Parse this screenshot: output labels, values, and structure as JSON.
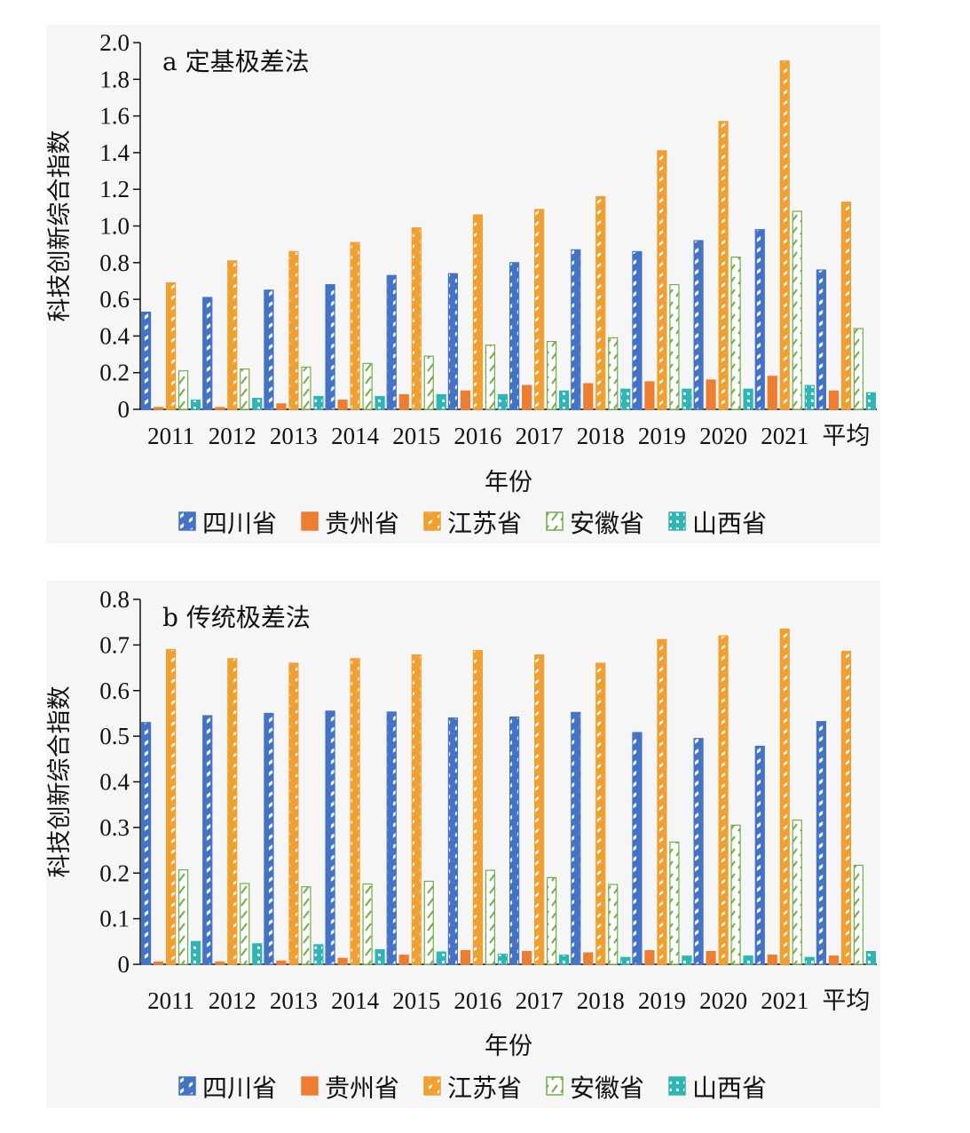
{
  "chart_data": [
    {
      "type": "bar",
      "title": "a 定基极差法",
      "xlabel": "年份",
      "ylabel": "科技创新综合指数",
      "ylim": [
        0,
        2.0
      ],
      "yticks": [
        "0",
        "0.2",
        "0.4",
        "0.6",
        "0.8",
        "1.0",
        "1.2",
        "1.4",
        "1.6",
        "1.8",
        "2.0"
      ],
      "categories": [
        "2011",
        "2012",
        "2013",
        "2014",
        "2015",
        "2016",
        "2017",
        "2018",
        "2019",
        "2020",
        "2021",
        "平均"
      ],
      "series": [
        {
          "name": "四川省",
          "color": "#4472c4",
          "values": [
            0.53,
            0.61,
            0.65,
            0.68,
            0.73,
            0.74,
            0.8,
            0.87,
            0.86,
            0.92,
            0.98,
            0.76
          ]
        },
        {
          "name": "贵州省",
          "color": "#ed7d31",
          "values": [
            0.01,
            0.01,
            0.03,
            0.05,
            0.08,
            0.1,
            0.13,
            0.14,
            0.15,
            0.16,
            0.18,
            0.1
          ]
        },
        {
          "name": "江苏省",
          "color": "#f0a030",
          "values": [
            0.69,
            0.81,
            0.86,
            0.91,
            0.99,
            1.06,
            1.09,
            1.16,
            1.41,
            1.57,
            1.9,
            1.13
          ]
        },
        {
          "name": "安徽省",
          "color": "#70ad47",
          "values": [
            0.21,
            0.22,
            0.23,
            0.25,
            0.29,
            0.35,
            0.37,
            0.39,
            0.68,
            0.83,
            1.08,
            0.44
          ]
        },
        {
          "name": "山西省",
          "color": "#2eb5b5",
          "values": [
            0.05,
            0.06,
            0.07,
            0.07,
            0.08,
            0.08,
            0.1,
            0.11,
            0.11,
            0.11,
            0.13,
            0.09
          ]
        }
      ],
      "legend": "bottom"
    },
    {
      "type": "bar",
      "title": "b 传统极差法",
      "xlabel": "年份",
      "ylabel": "科技创新综合指数",
      "ylim": [
        0,
        0.8
      ],
      "yticks": [
        "0",
        "0.1",
        "0.2",
        "0.3",
        "0.4",
        "0.5",
        "0.6",
        "0.7",
        "0.8"
      ],
      "categories": [
        "2011",
        "2012",
        "2013",
        "2014",
        "2015",
        "2016",
        "2017",
        "2018",
        "2019",
        "2020",
        "2021",
        "平均"
      ],
      "series": [
        {
          "name": "四川省",
          "color": "#4472c4",
          "values": [
            0.53,
            0.545,
            0.55,
            0.555,
            0.553,
            0.54,
            0.542,
            0.552,
            0.508,
            0.495,
            0.478,
            0.532
          ]
        },
        {
          "name": "贵州省",
          "color": "#ed7d31",
          "values": [
            0.005,
            0.005,
            0.007,
            0.013,
            0.02,
            0.03,
            0.028,
            0.025,
            0.03,
            0.028,
            0.02,
            0.018
          ]
        },
        {
          "name": "江苏省",
          "color": "#f0a030",
          "values": [
            0.69,
            0.67,
            0.66,
            0.67,
            0.678,
            0.688,
            0.678,
            0.66,
            0.712,
            0.72,
            0.735,
            0.686
          ]
        },
        {
          "name": "安徽省",
          "color": "#70ad47",
          "values": [
            0.207,
            0.177,
            0.17,
            0.176,
            0.182,
            0.206,
            0.19,
            0.175,
            0.268,
            0.305,
            0.316,
            0.217
          ]
        },
        {
          "name": "山西省",
          "color": "#2eb5b5",
          "values": [
            0.05,
            0.045,
            0.043,
            0.032,
            0.027,
            0.022,
            0.02,
            0.015,
            0.018,
            0.018,
            0.015,
            0.028
          ]
        }
      ],
      "legend": "bottom"
    }
  ]
}
